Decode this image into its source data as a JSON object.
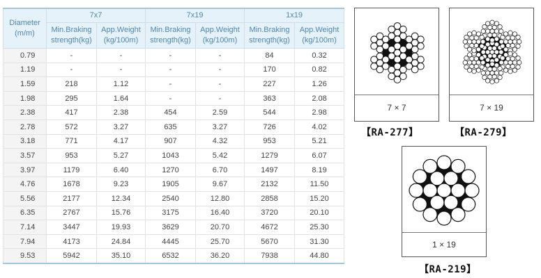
{
  "table": {
    "diameter_label": "Diameter",
    "diameter_unit": "(m/m)",
    "groups": [
      "7x7",
      "7x19",
      "1x19"
    ],
    "subheaders": [
      {
        "line1": "Min.Braking",
        "line2": "strength(kg)"
      },
      {
        "line1": "App.Weight",
        "line2": "(kg/100m)"
      },
      {
        "line1": "Min.Braking",
        "line2": "strength(kg)"
      },
      {
        "line1": "App.Weight",
        "line2": "(kg/100m)"
      },
      {
        "line1": "Min.Braking",
        "line2": "strength(kg)"
      },
      {
        "line1": "App.Weight",
        "line2": "(kg/100m)"
      }
    ],
    "rows": [
      [
        "0.79",
        "-",
        "-",
        "-",
        "-",
        "84",
        "0.32"
      ],
      [
        "1.19",
        "-",
        "-",
        "-",
        "-",
        "170",
        "0.82"
      ],
      [
        "1.59",
        "218",
        "1.12",
        "-",
        "-",
        "227",
        "1.26"
      ],
      [
        "1.98",
        "295",
        "1.64",
        "-",
        "-",
        "363",
        "2.08"
      ],
      [
        "2.38",
        "417",
        "2.38",
        "454",
        "2.59",
        "544",
        "2.98"
      ],
      [
        "2.78",
        "572",
        "3.27",
        "635",
        "3.27",
        "726",
        "4.02"
      ],
      [
        "3.18",
        "771",
        "4.17",
        "907",
        "4.32",
        "953",
        "5.21"
      ],
      [
        "3.57",
        "953",
        "5.27",
        "1043",
        "5.42",
        "1279",
        "6.07"
      ],
      [
        "3.97",
        "1179",
        "6.40",
        "1270",
        "6.70",
        "1497",
        "8.19"
      ],
      [
        "4.76",
        "1678",
        "9.23",
        "1905",
        "9.67",
        "2132",
        "11.50"
      ],
      [
        "5.56",
        "2177",
        "12.34",
        "2540",
        "12.80",
        "2858",
        "15.20"
      ],
      [
        "6.35",
        "2767",
        "15.76",
        "3175",
        "16.40",
        "3720",
        "20.10"
      ],
      [
        "7.14",
        "3447",
        "19.93",
        "3629",
        "20.70",
        "4672",
        "25.30"
      ],
      [
        "7.94",
        "4173",
        "24.84",
        "4445",
        "25.70",
        "5670",
        "31.30"
      ],
      [
        "9.53",
        "5942",
        "35.10",
        "6532",
        "36.20",
        "7938",
        "44.80"
      ]
    ]
  },
  "diagrams": [
    {
      "label": "7 × 7",
      "code": "【RA-277】",
      "icon": "rope-7x7-cross-section-icon"
    },
    {
      "label": "7 × 19",
      "code": "【RA-279】",
      "icon": "rope-7x19-cross-section-icon"
    },
    {
      "label": "1 × 19",
      "code": "【RA-219】",
      "icon": "strand-1x19-cross-section-icon"
    }
  ],
  "colors": {
    "header_bg": "#e6f2f9",
    "header_text": "#4f86ab",
    "header_border": "#9fc6dc"
  }
}
